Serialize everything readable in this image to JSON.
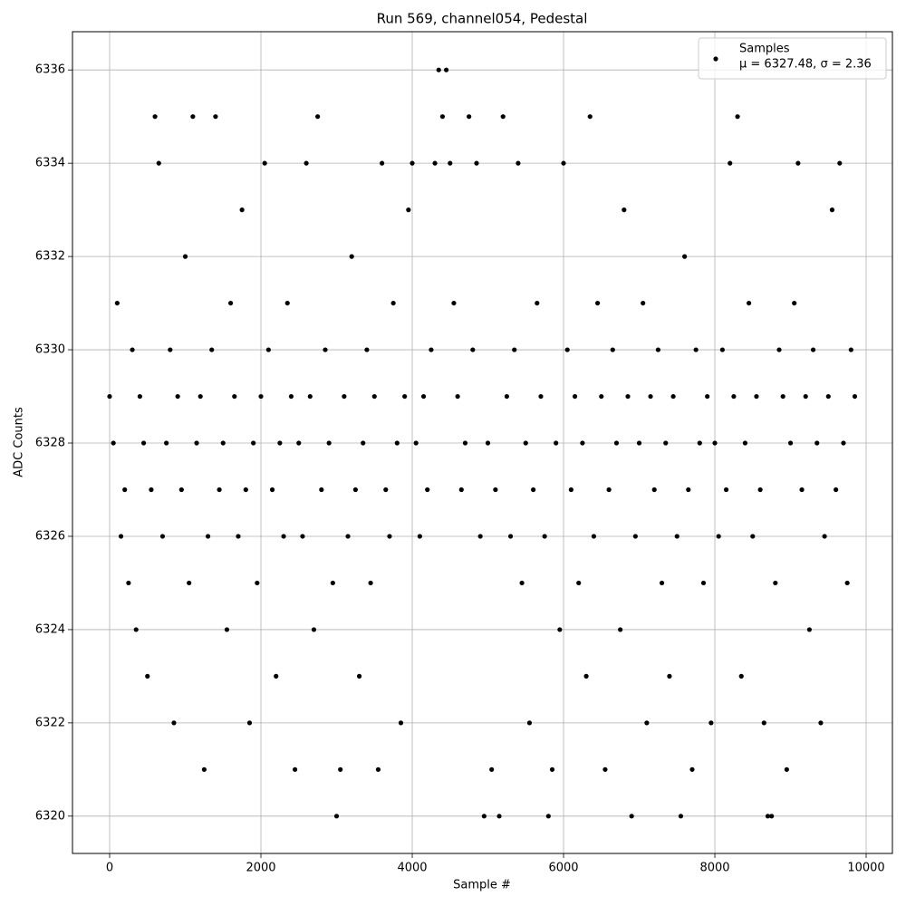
{
  "chart_data": {
    "type": "scatter",
    "title": "Run 569, channel054, Pedestal",
    "x_label": "Sample #",
    "y_label": "ADC Counts",
    "annotation": "μ = 6327.48, σ = 2.36",
    "legend": "upper right",
    "grid": true,
    "xlim": [
      -491,
      10347
    ],
    "xticks": [
      0,
      2000,
      4000,
      6000,
      8000,
      10000
    ],
    "ylim": [
      6319.2,
      6336.82
    ],
    "yticks": [
      6320,
      6322,
      6324,
      6326,
      6328,
      6330,
      6332,
      6334,
      6336
    ],
    "x": [
      0,
      50,
      100,
      150,
      200,
      250,
      300,
      350,
      400,
      450,
      500,
      550,
      600,
      650,
      700,
      750,
      800,
      850,
      900,
      950,
      1000,
      1050,
      1100,
      1150,
      1200,
      1250,
      1300,
      1350,
      1400,
      1450,
      1500,
      1550,
      1600,
      1650,
      1700,
      1750,
      1800,
      1850,
      1900,
      1950,
      2000,
      2050,
      2100,
      2150,
      2200,
      2250,
      2300,
      2350,
      2400,
      2450,
      2500,
      2550,
      2600,
      2650,
      2700,
      2750,
      2800,
      2850,
      2900,
      2950,
      3000,
      3050,
      3100,
      3150,
      3200,
      3250,
      3300,
      3350,
      3400,
      3450,
      3500,
      3550,
      3600,
      3650,
      3700,
      3750,
      3800,
      3850,
      3900,
      3950,
      4000,
      4050,
      4100,
      4150,
      4200,
      4250,
      4300,
      4350,
      4400,
      4450,
      4500,
      4550,
      4600,
      4650,
      4700,
      4750,
      4800,
      4850,
      4900,
      4950,
      5000,
      5050,
      5100,
      5150,
      5200,
      5250,
      5300,
      5350,
      5400,
      5450,
      5500,
      5550,
      5600,
      5650,
      5700,
      5750,
      5800,
      5850,
      5900,
      5950,
      6000,
      6050,
      6100,
      6150,
      6200,
      6250,
      6300,
      6350,
      6400,
      6450,
      6500,
      6550,
      6600,
      6650,
      6700,
      6750,
      6800,
      6850,
      6900,
      6950,
      7000,
      7050,
      7100,
      7150,
      7200,
      7250,
      7300,
      7350,
      7400,
      7450,
      7500,
      7550,
      7600,
      7650,
      7700,
      7750,
      7800,
      7850,
      7900,
      7950,
      8000,
      8050,
      8100,
      8150,
      8200,
      8250,
      8300,
      8350,
      8400,
      8450,
      8500,
      8550,
      8600,
      8650,
      8700,
      8750,
      8800,
      8850,
      8900,
      8950,
      9000,
      9050,
      9100,
      9150,
      9200,
      9250,
      9300,
      9350,
      9400,
      9450,
      9500,
      9550,
      9600,
      9650,
      9700,
      9750,
      9800,
      9850
    ],
    "series": [
      {
        "name": "Samples",
        "color": "#000000",
        "values": [
          6329,
          6328,
          6331,
          6326,
          6327,
          6325,
          6330,
          6324,
          6329,
          6328,
          6323,
          6327,
          6335,
          6334,
          6326,
          6328,
          6330,
          6322,
          6329,
          6327,
          6332,
          6325,
          6335,
          6328,
          6329,
          6321,
          6326,
          6330,
          6335,
          6327,
          6328,
          6324,
          6331,
          6329,
          6326,
          6333,
          6327,
          6322,
          6328,
          6325,
          6329,
          6334,
          6330,
          6327,
          6323,
          6328,
          6326,
          6331,
          6329,
          6321,
          6328,
          6326,
          6334,
          6329,
          6324,
          6335,
          6327,
          6330,
          6328,
          6325,
          6320,
          6321,
          6329,
          6326,
          6332,
          6327,
          6323,
          6328,
          6330,
          6325,
          6329,
          6321,
          6334,
          6327,
          6326,
          6331,
          6328,
          6322,
          6329,
          6333,
          6334,
          6328,
          6326,
          6329,
          6327,
          6330,
          6334,
          6336,
          6335,
          6336,
          6334,
          6331,
          6329,
          6327,
          6328,
          6335,
          6330,
          6334,
          6326,
          6320,
          6328,
          6321,
          6327,
          6320,
          6335,
          6329,
          6326,
          6330,
          6334,
          6325,
          6328,
          6322,
          6327,
          6331,
          6329,
          6326,
          6320,
          6321,
          6328,
          6324,
          6334,
          6330,
          6327,
          6329,
          6325,
          6328,
          6323,
          6335,
          6326,
          6331,
          6329,
          6321,
          6327,
          6330,
          6328,
          6324,
          6333,
          6329,
          6320,
          6326,
          6328,
          6331,
          6322,
          6329,
          6327,
          6330,
          6325,
          6328,
          6323,
          6329,
          6326,
          6320,
          6332,
          6327,
          6321,
          6330,
          6328,
          6325,
          6329,
          6322,
          6328,
          6326,
          6330,
          6327,
          6334,
          6329,
          6335,
          6323,
          6328,
          6331,
          6326,
          6329,
          6327,
          6322,
          6320,
          6320,
          6325,
          6330,
          6329,
          6321,
          6328,
          6331,
          6334,
          6327,
          6329,
          6324,
          6330,
          6328,
          6322,
          6326,
          6329,
          6333,
          6327,
          6334,
          6328,
          6325,
          6330,
          6329
        ]
      }
    ]
  }
}
